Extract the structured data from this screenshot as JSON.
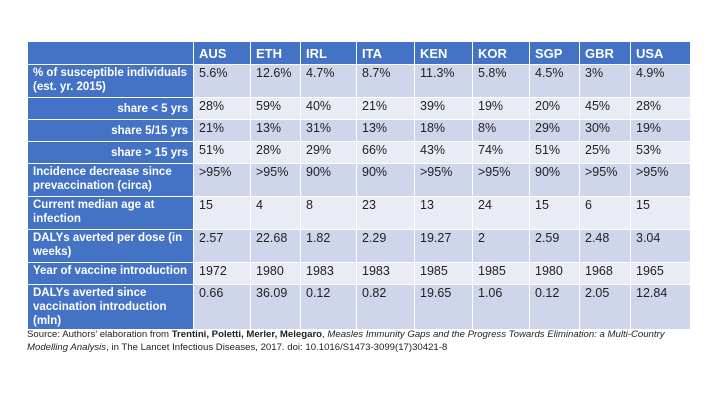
{
  "table": {
    "corner": "",
    "countries": [
      "AUS",
      "ETH",
      "IRL",
      "ITA",
      "KEN",
      "KOR",
      "SGP",
      "GBR",
      "USA"
    ],
    "rows": [
      {
        "label": "% of susceptible individuals (est. yr. 2015)",
        "align": "left",
        "values": [
          "5.6%",
          "12.6%",
          "4.7%",
          "8.7%",
          "11.3%",
          "5.8%",
          "4.5%",
          "3%",
          "4.9%"
        ]
      },
      {
        "label": "share  < 5 yrs",
        "align": "right",
        "values": [
          "28%",
          "59%",
          "40%",
          "21%",
          "39%",
          "19%",
          "20%",
          "45%",
          "28%"
        ]
      },
      {
        "label": "share  5/15 yrs",
        "align": "right",
        "values": [
          "21%",
          "13%",
          "31%",
          "13%",
          "18%",
          "8%",
          "29%",
          "30%",
          "19%"
        ]
      },
      {
        "label": "share > 15 yrs",
        "align": "right",
        "values": [
          "51%",
          "28%",
          "29%",
          "66%",
          "43%",
          "74%",
          "51%",
          "25%",
          "53%"
        ]
      },
      {
        "label": "Incidence decrease since prevaccination (circa)",
        "align": "left",
        "values": [
          ">95%",
          ">95%",
          "90%",
          "90%",
          ">95%",
          ">95%",
          "90%",
          ">95%",
          ">95%"
        ]
      },
      {
        "label": "Current median age at infection",
        "align": "left",
        "values": [
          "15",
          "4",
          "8",
          "23",
          "13",
          "24",
          "15",
          "6",
          "15"
        ]
      },
      {
        "label": "DALYs averted per dose (in weeks)",
        "align": "left",
        "values": [
          "2.57",
          "22.68",
          "1.82",
          "2.29",
          "19.27",
          "2",
          "2.59",
          "2.48",
          "3.04"
        ]
      },
      {
        "label": "Year of vaccine introduction",
        "align": "left",
        "values": [
          "1972",
          "1980",
          "1983",
          "1983",
          "1985",
          "1985",
          "1980",
          "1968",
          "1965"
        ]
      },
      {
        "label": "DALYs averted since vaccination introduction (mln)",
        "align": "left",
        "values": [
          "0.66",
          "36.09",
          "0.12",
          "0.82",
          "19.65",
          "1.06",
          "0.12",
          "2.05",
          "12.84"
        ]
      }
    ]
  },
  "source": {
    "prefix": "Source: Authors’ elaboration from ",
    "authors": "Trentini, Poletti, Merler, Melegaro",
    "sep": ", ",
    "title": "Measles Immunity Gaps and the Progress Towards Elimination: a Multi-Country Modelling Analysis",
    "suffix": ", in The Lancet Infectious Diseases, 2017. doi: 10.1016/S1473-3099(17)30421-8"
  },
  "colors": {
    "header": "#4472c4",
    "row_odd": "#cfd5ea",
    "row_even": "#e9ebf5"
  }
}
